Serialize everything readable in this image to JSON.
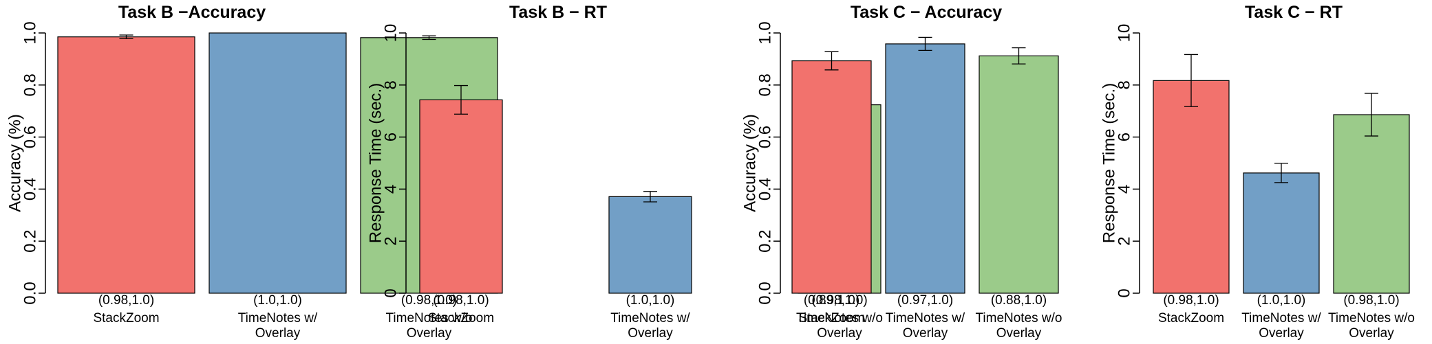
{
  "chart_data": [
    {
      "type": "bar",
      "title": "Task B −Accuracy",
      "ylabel": "Accuracy (%)",
      "ylim": [
        0,
        1.0
      ],
      "yticks": [
        "0.0",
        "0.2",
        "0.4",
        "0.6",
        "0.8",
        "1.0"
      ],
      "categories": [
        [
          "StackZoom"
        ],
        [
          "TimeNotes w/",
          "Overlay"
        ],
        [
          "TimeNotes w/o",
          "Overlay"
        ]
      ],
      "intervals": [
        "(0.98,1.0)",
        "(1.0,1.0)",
        "(0.98,1.0)"
      ],
      "values": [
        0.985,
        1.0,
        0.982
      ],
      "err_low": [
        0.978,
        1.0,
        0.975
      ],
      "err_high": [
        0.992,
        1.0,
        0.989
      ],
      "colors": [
        "#f2726d",
        "#729fc6",
        "#9bcb8a"
      ]
    },
    {
      "type": "bar",
      "title": "Task B − RT",
      "ylabel": "Response Time (sec.)",
      "ylim": [
        0,
        10
      ],
      "yticks": [
        "0",
        "2",
        "4",
        "6",
        "8",
        "10"
      ],
      "categories": [
        [
          "StackZoom"
        ],
        [
          "TimeNotes w/",
          "Overlay"
        ],
        [
          "TimeNotes w/o",
          "Overlay"
        ]
      ],
      "intervals": [
        "(0.98,1.0)",
        "(1.0,1.0)",
        "(0.98,1.0)"
      ],
      "values": [
        7.43,
        3.71,
        7.24
      ],
      "err_low": [
        6.88,
        3.51,
        6.72
      ],
      "err_high": [
        7.98,
        3.91,
        7.76
      ],
      "colors": [
        "#f2726d",
        "#729fc6",
        "#9bcb8a"
      ]
    },
    {
      "type": "bar",
      "title": "Task C − Accuracy",
      "ylabel": "Accuracy (%)",
      "ylim": [
        0,
        1.0
      ],
      "yticks": [
        "0.0",
        "0.2",
        "0.4",
        "0.6",
        "0.8",
        "1.0"
      ],
      "categories": [
        [
          "StackZoom"
        ],
        [
          "TimeNotes w/",
          "Overlay"
        ],
        [
          "TimeNotes w/o",
          "Overlay"
        ]
      ],
      "intervals": [
        "(0.89,1.0)",
        "(0.97,1.0)",
        "(0.88,1.0)"
      ],
      "values": [
        0.893,
        0.958,
        0.912
      ],
      "err_low": [
        0.858,
        0.933,
        0.881
      ],
      "err_high": [
        0.928,
        0.983,
        0.943
      ],
      "colors": [
        "#f2726d",
        "#729fc6",
        "#9bcb8a"
      ]
    },
    {
      "type": "bar",
      "title": "Task C − RT",
      "ylabel": "Response Time (sec.)",
      "ylim": [
        0,
        10
      ],
      "yticks": [
        "0",
        "2",
        "4",
        "6",
        "8",
        "10"
      ],
      "categories": [
        [
          "StackZoom"
        ],
        [
          "TimeNotes w/",
          "Overlay"
        ],
        [
          "TimeNotes w/o",
          "Overlay"
        ]
      ],
      "intervals": [
        "(0.98,1.0)",
        "(1.0,1.0)",
        "(0.98,1.0)"
      ],
      "values": [
        8.17,
        4.62,
        6.86
      ],
      "err_low": [
        7.17,
        4.25,
        6.04
      ],
      "err_high": [
        9.17,
        4.99,
        7.68
      ],
      "colors": [
        "#f2726d",
        "#729fc6",
        "#9bcb8a"
      ]
    }
  ]
}
